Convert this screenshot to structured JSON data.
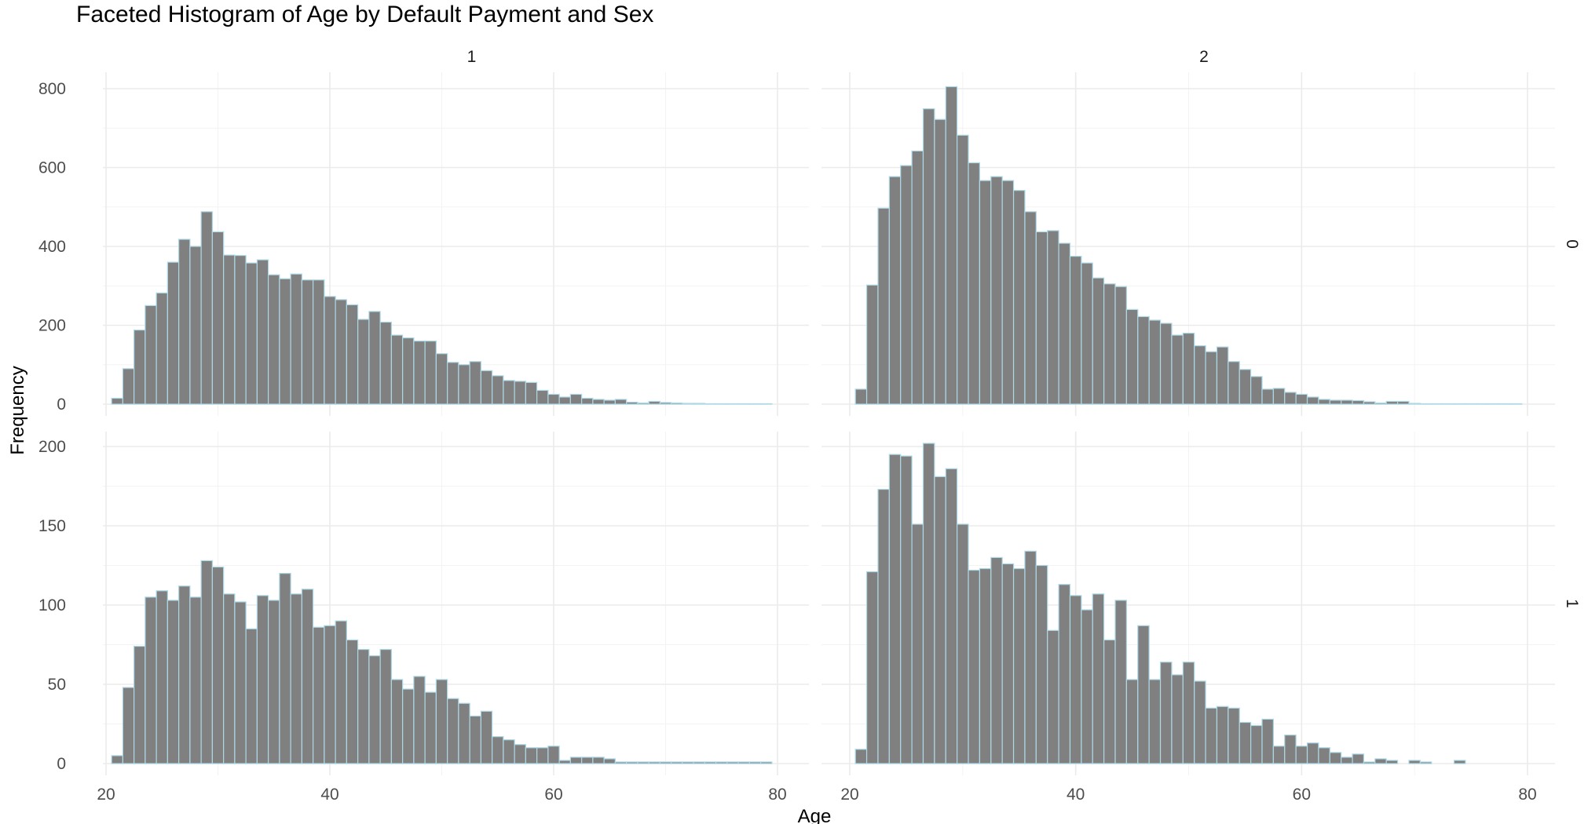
{
  "chart_data": {
    "type": "bar",
    "title": "Faceted Histogram of Age by Default Payment and Sex",
    "xlabel": "Age",
    "ylabel": "Frequency",
    "bin_width": 1,
    "xlim": [
      20,
      80
    ],
    "x_ticks": [
      20,
      40,
      60,
      80
    ],
    "grid": true,
    "legend": "none",
    "colors": {
      "fill": "#808080",
      "outline": "#add8e6"
    },
    "column_facet": {
      "values": [
        "1",
        "2"
      ]
    },
    "row_facet": {
      "values": [
        "0",
        "1"
      ]
    },
    "rows": [
      {
        "row": "0",
        "ylim": [
          0,
          820
        ],
        "y_ticks": [
          0,
          200,
          400,
          600,
          800
        ],
        "y_tick_labels": [
          "0",
          "200",
          "400",
          "600",
          "800"
        ]
      },
      {
        "row": "1",
        "ylim": [
          0,
          205
        ],
        "y_ticks": [
          0,
          50,
          100,
          150,
          200
        ],
        "y_tick_labels": [
          "0",
          "50",
          "100",
          "150",
          "200"
        ]
      }
    ],
    "panels": [
      {
        "column": "1",
        "row": "0",
        "x_start": 21,
        "values": [
          15,
          90,
          188,
          250,
          282,
          360,
          418,
          400,
          488,
          437,
          378,
          377,
          358,
          366,
          328,
          318,
          330,
          315,
          315,
          273,
          265,
          252,
          215,
          235,
          208,
          175,
          168,
          160,
          160,
          128,
          106,
          100,
          108,
          85,
          72,
          60,
          58,
          55,
          35,
          25,
          18,
          25,
          15,
          12,
          10,
          12,
          5,
          3,
          7,
          4,
          3,
          2,
          2,
          1,
          1,
          1,
          1,
          1,
          1
        ]
      },
      {
        "column": "2",
        "row": "0",
        "x_start": 21,
        "values": [
          38,
          302,
          497,
          577,
          605,
          642,
          749,
          722,
          805,
          682,
          612,
          567,
          577,
          567,
          542,
          488,
          437,
          440,
          408,
          375,
          358,
          320,
          305,
          298,
          240,
          222,
          213,
          205,
          175,
          180,
          148,
          133,
          145,
          108,
          88,
          70,
          38,
          40,
          30,
          25,
          18,
          12,
          10,
          10,
          9,
          6,
          3,
          7,
          7,
          2,
          1,
          1,
          1,
          1,
          1,
          1,
          1,
          1,
          1
        ]
      },
      {
        "column": "1",
        "row": "1",
        "x_start": 21,
        "values": [
          5,
          48,
          74,
          105,
          109,
          103,
          112,
          105,
          128,
          124,
          107,
          102,
          85,
          106,
          103,
          120,
          107,
          110,
          86,
          87,
          90,
          78,
          72,
          68,
          72,
          53,
          47,
          55,
          45,
          53,
          41,
          38,
          30,
          33,
          17,
          15,
          12,
          10,
          10,
          11,
          2,
          4,
          4,
          4,
          3,
          1,
          1,
          1,
          1,
          1,
          1,
          1,
          1,
          1,
          1,
          1,
          1,
          1,
          1
        ]
      },
      {
        "column": "2",
        "row": "1",
        "x_start": 21,
        "values": [
          9,
          121,
          173,
          195,
          194,
          151,
          202,
          181,
          186,
          151,
          122,
          123,
          130,
          126,
          123,
          134,
          125,
          84,
          113,
          106,
          97,
          107,
          78,
          103,
          53,
          87,
          53,
          64,
          56,
          64,
          52,
          35,
          36,
          35,
          26,
          24,
          28,
          11,
          18,
          11,
          13,
          10,
          7,
          4,
          6,
          1,
          3,
          2,
          0,
          2,
          1,
          0,
          0,
          2,
          0,
          0,
          0,
          0,
          0
        ]
      }
    ]
  }
}
